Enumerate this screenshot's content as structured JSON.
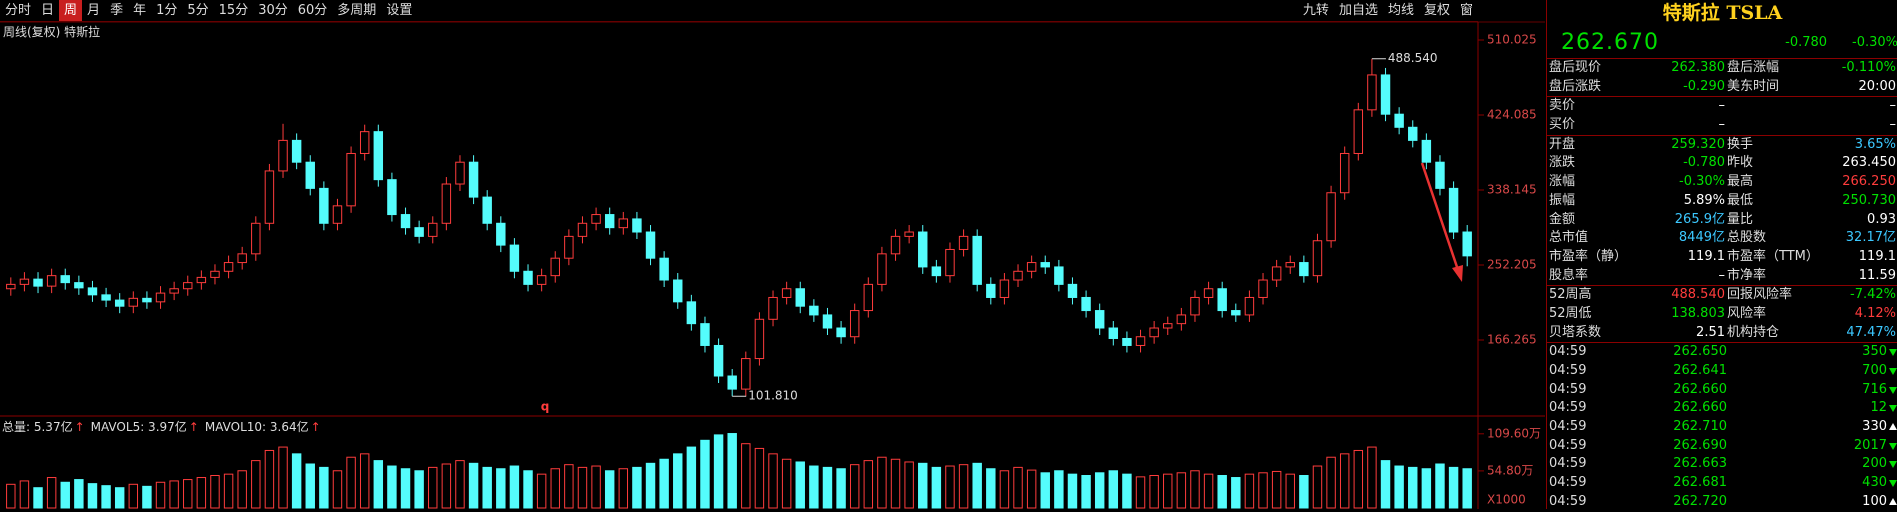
{
  "toolbar": {
    "periods": [
      "分时",
      "日",
      "周",
      "月",
      "季",
      "年",
      "1分",
      "5分",
      "15分",
      "30分",
      "60分",
      "多周期"
    ],
    "active": 2,
    "settings": "设置",
    "right_items": [
      "九转",
      "加自选",
      "均线",
      "复权",
      "窗"
    ]
  },
  "chart_header": "周线(复权)  特斯拉",
  "chart_data": [
    {
      "type": "candlestick",
      "colors": {
        "up": "#ff3c3c",
        "down": "#54fcfc"
      },
      "grid": false,
      "ylim": [
        81.47,
        510.025
      ],
      "yticks": [
        510.025,
        424.085,
        338.145,
        252.205,
        166.265
      ],
      "max_label": "488.540",
      "min_label": "101.810",
      "marker_text": "q",
      "open": [
        225,
        230,
        236,
        228,
        240,
        232,
        226,
        218,
        212,
        205,
        214,
        210,
        220,
        225,
        232,
        238,
        245,
        255,
        265,
        300,
        360,
        395,
        370,
        340,
        300,
        320,
        380,
        405,
        350,
        310,
        295,
        285,
        300,
        345,
        370,
        330,
        300,
        275,
        245,
        230,
        240,
        260,
        285,
        300,
        310,
        295,
        305,
        290,
        260,
        235,
        210,
        185,
        160,
        125,
        110,
        145,
        190,
        215,
        225,
        205,
        195,
        180,
        170,
        200,
        230,
        265,
        285,
        290,
        250,
        240,
        270,
        285,
        230,
        215,
        235,
        245,
        255,
        250,
        230,
        215,
        200,
        180,
        168,
        160,
        170,
        180,
        185,
        195,
        215,
        225,
        200,
        195,
        215,
        235,
        250,
        255,
        240,
        280,
        335,
        380,
        430,
        470,
        425,
        410,
        395,
        370,
        340,
        290
      ],
      "high": [
        238,
        244,
        244,
        248,
        248,
        240,
        234,
        226,
        220,
        222,
        222,
        228,
        233,
        240,
        246,
        253,
        263,
        273,
        308,
        368,
        414,
        403,
        378,
        348,
        328,
        388,
        413,
        413,
        358,
        318,
        303,
        308,
        353,
        378,
        378,
        338,
        308,
        283,
        253,
        248,
        268,
        293,
        308,
        318,
        318,
        313,
        313,
        298,
        268,
        243,
        218,
        193,
        168,
        133,
        153,
        198,
        223,
        233,
        233,
        213,
        203,
        188,
        208,
        238,
        273,
        293,
        298,
        298,
        258,
        278,
        293,
        293,
        238,
        243,
        253,
        263,
        263,
        258,
        238,
        223,
        208,
        188,
        176,
        178,
        188,
        193,
        203,
        223,
        233,
        233,
        208,
        223,
        243,
        258,
        263,
        263,
        288,
        343,
        388,
        438,
        488.54,
        478,
        433,
        418,
        403,
        378,
        348,
        298
      ],
      "low": [
        217,
        222,
        220,
        220,
        224,
        218,
        210,
        204,
        197,
        197,
        202,
        202,
        212,
        217,
        224,
        230,
        237,
        247,
        257,
        292,
        352,
        362,
        332,
        292,
        292,
        312,
        372,
        342,
        302,
        287,
        277,
        277,
        292,
        337,
        322,
        292,
        267,
        237,
        222,
        222,
        232,
        252,
        277,
        292,
        287,
        287,
        282,
        252,
        227,
        202,
        177,
        152,
        117,
        101.81,
        102,
        137,
        182,
        207,
        197,
        187,
        172,
        162,
        162,
        192,
        222,
        257,
        277,
        242,
        232,
        232,
        262,
        222,
        207,
        207,
        227,
        237,
        242,
        222,
        207,
        192,
        172,
        160,
        152,
        152,
        162,
        172,
        177,
        187,
        207,
        192,
        187,
        187,
        207,
        227,
        242,
        232,
        232,
        272,
        327,
        372,
        422,
        417,
        402,
        387,
        362,
        332,
        282,
        250.73
      ],
      "close": [
        230,
        236,
        228,
        240,
        232,
        226,
        218,
        212,
        205,
        214,
        210,
        220,
        225,
        232,
        238,
        245,
        255,
        265,
        300,
        360,
        395,
        370,
        340,
        300,
        320,
        380,
        405,
        350,
        310,
        295,
        285,
        300,
        345,
        370,
        330,
        300,
        275,
        245,
        230,
        240,
        260,
        285,
        300,
        310,
        295,
        305,
        290,
        260,
        235,
        210,
        185,
        160,
        125,
        110,
        145,
        190,
        215,
        225,
        205,
        195,
        180,
        170,
        200,
        230,
        265,
        285,
        290,
        250,
        240,
        270,
        285,
        230,
        215,
        235,
        245,
        255,
        250,
        230,
        215,
        200,
        180,
        168,
        160,
        170,
        180,
        185,
        195,
        215,
        225,
        200,
        195,
        215,
        235,
        250,
        255,
        240,
        280,
        335,
        380,
        430,
        470,
        425,
        410,
        395,
        370,
        340,
        290,
        262.67
      ]
    },
    {
      "type": "bar",
      "ylim": [
        0,
        130
      ],
      "yticks": [
        {
          "value": 109.6,
          "label": "109.60万"
        },
        {
          "value": 54.8,
          "label": "54.80万"
        }
      ],
      "volume_unit": "X1000",
      "legend": [
        "总量: 5.37亿",
        "MAVOL5: 3.97亿",
        "MAVOL10: 3.64亿"
      ],
      "values": [
        35,
        40,
        30,
        45,
        38,
        42,
        36,
        33,
        30,
        35,
        32,
        38,
        40,
        42,
        45,
        48,
        50,
        55,
        70,
        85,
        90,
        80,
        65,
        60,
        55,
        75,
        80,
        70,
        62,
        58,
        55,
        60,
        65,
        70,
        66,
        60,
        58,
        62,
        55,
        50,
        58,
        64,
        60,
        62,
        55,
        58,
        60,
        66,
        72,
        80,
        90,
        100,
        108,
        110,
        95,
        88,
        80,
        72,
        68,
        62,
        60,
        58,
        64,
        70,
        75,
        72,
        68,
        66,
        60,
        62,
        64,
        66,
        58,
        55,
        60,
        56,
        52,
        55,
        50,
        48,
        52,
        55,
        50,
        46,
        48,
        50,
        52,
        55,
        50,
        48,
        45,
        50,
        52,
        54,
        50,
        48,
        62,
        75,
        80,
        85,
        90,
        70,
        62,
        60,
        58,
        65,
        60,
        58
      ]
    }
  ],
  "quote_panel": {
    "title": "特斯拉 TSLA",
    "price": "262.670",
    "change": "-0.780",
    "change_pct": "-0.30%",
    "sections": [
      [
        {
          "cells": [
            "盘后现价",
            "262.380",
            "盘后涨幅",
            "-0.110%"
          ],
          "colors": [
            "#00e000",
            "#00e000"
          ]
        },
        {
          "cells": [
            "盘后涨跌",
            "-0.290",
            "美东时间",
            "20:00"
          ],
          "colors": [
            "#00e000",
            "#ffffff"
          ]
        }
      ],
      [
        {
          "cells": [
            "卖价",
            "–",
            null,
            "–"
          ],
          "colors": [
            "#ffffff",
            "#ffffff"
          ]
        },
        {
          "cells": [
            "买价",
            "–",
            null,
            "–"
          ],
          "colors": [
            "#ffffff",
            "#ffffff"
          ]
        }
      ],
      [
        {
          "cells": [
            "开盘",
            "259.320",
            "换手",
            "3.65%"
          ],
          "colors": [
            "#00e000",
            "#3cc8ff"
          ]
        },
        {
          "cells": [
            "涨跌",
            "-0.780",
            "昨收",
            "263.450"
          ],
          "colors": [
            "#00e000",
            "#ffffff"
          ]
        },
        {
          "cells": [
            "涨幅",
            "-0.30%",
            "最高",
            "266.250"
          ],
          "colors": [
            "#00e000",
            "#ff3c3c"
          ]
        },
        {
          "cells": [
            "振幅",
            "5.89%",
            "最低",
            "250.730"
          ],
          "colors": [
            "#ffffff",
            "#00e000"
          ]
        },
        {
          "cells": [
            "金额",
            "265.9亿",
            "量比",
            "0.93"
          ],
          "colors": [
            "#3cc8ff",
            "#ffffff"
          ]
        },
        {
          "cells": [
            "总市值",
            "8449亿",
            "总股数",
            "32.17亿"
          ],
          "colors": [
            "#3cc8ff",
            "#3cc8ff"
          ]
        },
        {
          "cells": [
            "市盈率（静）",
            "119.1",
            "市盈率（TTM）",
            "119.1"
          ],
          "colors": [
            "#ffffff",
            "#ffffff"
          ]
        },
        {
          "cells": [
            "股息率",
            "–",
            "市净率",
            "11.59"
          ],
          "colors": [
            "#ffffff",
            "#ffffff"
          ]
        }
      ],
      [
        {
          "cells": [
            "52周高",
            "488.540",
            "回报风险率",
            "-7.42%"
          ],
          "colors": [
            "#ff3c3c",
            "#00e000"
          ]
        },
        {
          "cells": [
            "52周低",
            "138.803",
            "风险率",
            "4.12%"
          ],
          "colors": [
            "#00e000",
            "#ff3c3c"
          ]
        },
        {
          "cells": [
            "贝塔系数",
            "2.51",
            "机构持仓",
            "47.47%"
          ],
          "colors": [
            "#ffffff",
            "#3cc8ff"
          ]
        }
      ]
    ],
    "trades": [
      {
        "time": "04:59",
        "price": "262.650",
        "volume": "350",
        "dir": "down"
      },
      {
        "time": "04:59",
        "price": "262.641",
        "volume": "700",
        "dir": "down"
      },
      {
        "time": "04:59",
        "price": "262.660",
        "volume": "716",
        "dir": "down"
      },
      {
        "time": "04:59",
        "price": "262.660",
        "volume": "12",
        "dir": "down"
      },
      {
        "time": "04:59",
        "price": "262.710",
        "volume": "330",
        "dir": "up"
      },
      {
        "time": "04:59",
        "price": "262.690",
        "volume": "2017",
        "dir": "down"
      },
      {
        "time": "04:59",
        "price": "262.663",
        "volume": "200",
        "dir": "down"
      },
      {
        "time": "04:59",
        "price": "262.681",
        "volume": "430",
        "dir": "down"
      },
      {
        "time": "04:59",
        "price": "262.720",
        "volume": "100",
        "dir": "up"
      }
    ]
  }
}
